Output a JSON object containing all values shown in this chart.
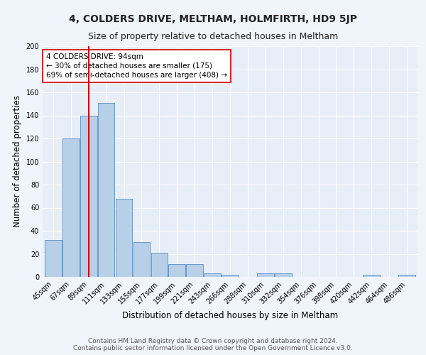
{
  "title": "4, COLDERS DRIVE, MELTHAM, HOLMFIRTH, HD9 5JP",
  "subtitle": "Size of property relative to detached houses in Meltham",
  "xlabel": "Distribution of detached houses by size in Meltham",
  "ylabel": "Number of detached properties",
  "categories": [
    "45sqm",
    "67sqm",
    "89sqm",
    "111sqm",
    "133sqm",
    "155sqm",
    "177sqm",
    "199sqm",
    "221sqm",
    "243sqm",
    "266sqm",
    "288sqm",
    "310sqm",
    "332sqm",
    "354sqm",
    "376sqm",
    "398sqm",
    "420sqm",
    "442sqm",
    "464sqm",
    "486sqm"
  ],
  "values": [
    32,
    120,
    140,
    151,
    68,
    30,
    21,
    11,
    11,
    3,
    2,
    0,
    3,
    3,
    0,
    0,
    0,
    0,
    2,
    0,
    2
  ],
  "bar_color": "#b8cfe8",
  "bar_edge_color": "#6699cc",
  "vline_x_index": 2,
  "vline_color": "#cc0000",
  "annotation_line1": "4 COLDERS DRIVE: 94sqm",
  "annotation_line2": "← 30% of detached houses are smaller (175)",
  "annotation_line3": "69% of semi-detached houses are larger (408) →",
  "annotation_box_color": "#ffffff",
  "annotation_box_edge": "#cc0000",
  "ylim": [
    0,
    200
  ],
  "yticks": [
    0,
    20,
    40,
    60,
    80,
    100,
    120,
    140,
    160,
    180,
    200
  ],
  "bg_color": "#e8eef8",
  "grid_color": "#ffffff",
  "footer_line1": "Contains HM Land Registry data © Crown copyright and database right 2024.",
  "footer_line2": "Contains public sector information licensed under the Open Government Licence v3.0.",
  "title_fontsize": 10,
  "subtitle_fontsize": 9,
  "label_fontsize": 8.5,
  "tick_fontsize": 7,
  "annotation_fontsize": 7.5,
  "footer_fontsize": 6.5
}
